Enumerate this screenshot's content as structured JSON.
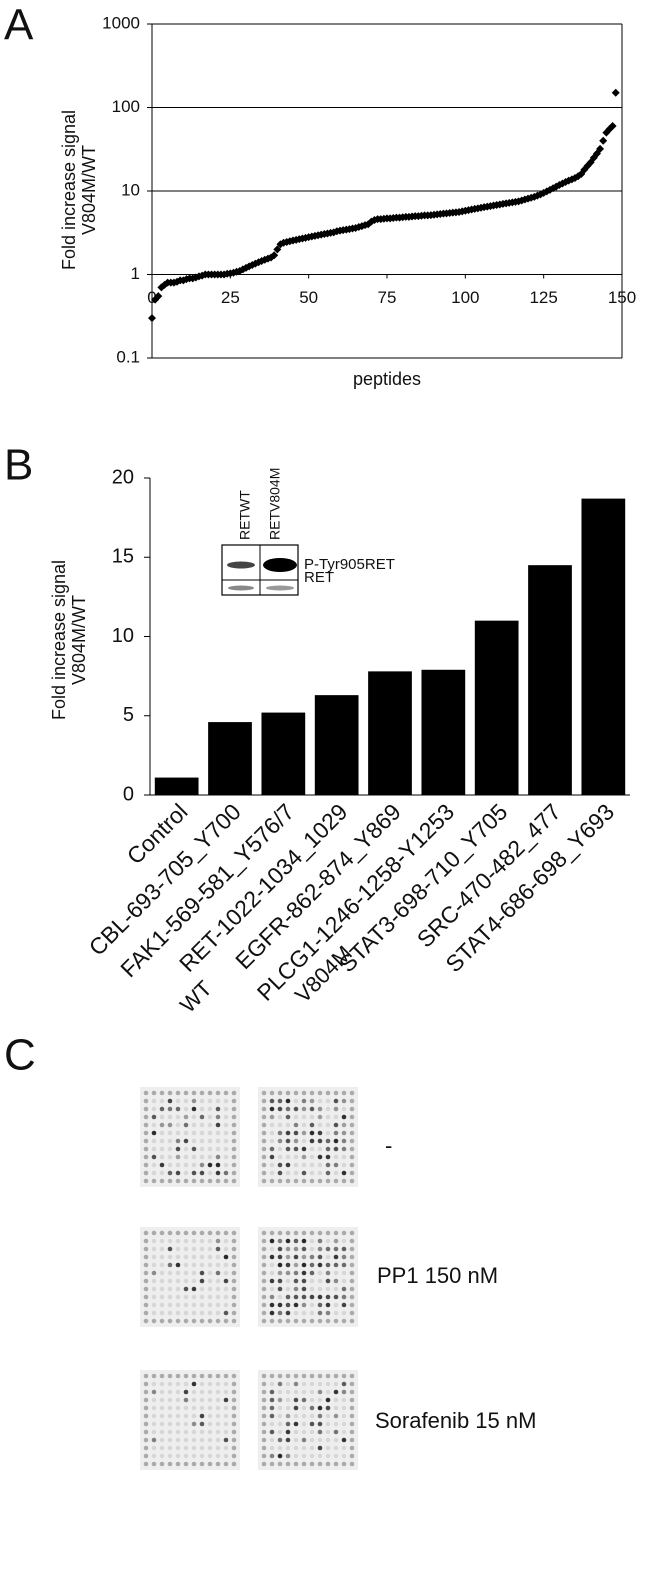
{
  "panels": [
    "A",
    "B",
    "C"
  ],
  "chart_data": [
    {
      "type": "scatter",
      "ylabel": [
        "Fold increase signal",
        "V804M/WT"
      ],
      "xlabel": "peptides",
      "log_y": true,
      "grid": true,
      "color": "#000000",
      "xlim": [
        0,
        150
      ],
      "xticks": [
        0,
        25,
        50,
        75,
        100,
        125,
        150
      ],
      "ylim": [
        0.1,
        1000
      ],
      "yticks": [
        0.1,
        1,
        10,
        100,
        1000
      ],
      "x": [
        0,
        1,
        2,
        3,
        4,
        5,
        6,
        7,
        8,
        9,
        10,
        11,
        12,
        13,
        14,
        15,
        16,
        17,
        18,
        19,
        20,
        21,
        22,
        23,
        24,
        25,
        26,
        27,
        28,
        29,
        30,
        31,
        32,
        33,
        34,
        35,
        36,
        37,
        38,
        39,
        40,
        41,
        42,
        43,
        44,
        45,
        46,
        47,
        48,
        49,
        50,
        51,
        52,
        53,
        54,
        55,
        56,
        57,
        58,
        59,
        60,
        61,
        62,
        63,
        64,
        65,
        66,
        67,
        68,
        69,
        70,
        71,
        72,
        73,
        74,
        75,
        76,
        77,
        78,
        79,
        80,
        81,
        82,
        83,
        84,
        85,
        86,
        87,
        88,
        89,
        90,
        91,
        92,
        93,
        94,
        95,
        96,
        97,
        98,
        99,
        100,
        101,
        102,
        103,
        104,
        105,
        106,
        107,
        108,
        109,
        110,
        111,
        112,
        113,
        114,
        115,
        116,
        117,
        118,
        119,
        120,
        121,
        122,
        123,
        124,
        125,
        126,
        127,
        128,
        129,
        130,
        131,
        132,
        133,
        134,
        135,
        136,
        137,
        138,
        139,
        140,
        141,
        142,
        143,
        144,
        145,
        146,
        147,
        148
      ],
      "values": [
        0.3,
        0.5,
        0.55,
        0.7,
        0.75,
        0.8,
        0.8,
        0.8,
        0.82,
        0.85,
        0.85,
        0.88,
        0.9,
        0.9,
        0.92,
        0.95,
        0.97,
        1.0,
        1.0,
        1.0,
        1.0,
        1.0,
        1.0,
        1.0,
        1.02,
        1.03,
        1.05,
        1.08,
        1.1,
        1.15,
        1.2,
        1.25,
        1.3,
        1.35,
        1.4,
        1.45,
        1.5,
        1.55,
        1.6,
        1.7,
        2.0,
        2.3,
        2.4,
        2.45,
        2.5,
        2.55,
        2.6,
        2.65,
        2.7,
        2.75,
        2.8,
        2.85,
        2.9,
        2.95,
        3.0,
        3.05,
        3.1,
        3.15,
        3.2,
        3.3,
        3.35,
        3.4,
        3.45,
        3.5,
        3.55,
        3.6,
        3.7,
        3.8,
        3.9,
        4.0,
        4.3,
        4.5,
        4.6,
        4.6,
        4.65,
        4.7,
        4.7,
        4.75,
        4.8,
        4.8,
        4.85,
        4.9,
        4.9,
        4.95,
        5.0,
        5.0,
        5.05,
        5.1,
        5.1,
        5.15,
        5.2,
        5.25,
        5.3,
        5.35,
        5.4,
        5.45,
        5.5,
        5.55,
        5.6,
        5.7,
        5.8,
        5.9,
        6.0,
        6.1,
        6.2,
        6.3,
        6.4,
        6.5,
        6.6,
        6.7,
        6.8,
        6.9,
        7.0,
        7.1,
        7.2,
        7.3,
        7.4,
        7.5,
        7.7,
        7.9,
        8.1,
        8.3,
        8.5,
        8.8,
        9.1,
        9.5,
        9.9,
        10.3,
        10.8,
        11.3,
        11.8,
        12.3,
        12.8,
        13.3,
        13.8,
        14.3,
        15,
        16,
        18,
        20,
        22,
        25,
        28,
        32,
        40,
        50,
        55,
        60,
        150
      ]
    },
    {
      "type": "bar",
      "ylabel": [
        "Fold increase signal",
        "V804M/WT"
      ],
      "color": "#000000",
      "categories": [
        "Control",
        "CBL-693-705_Y700",
        "FAK1-569-581_Y576/7",
        "RET-1022-1034_1029",
        "EGFR-862-874_Y869",
        "PLCG1-1246-1258-Y1253",
        "STAT3-698-710_Y705",
        "SRC-470-482_477",
        "STAT4-686-698_Y693"
      ],
      "values": [
        1.1,
        4.6,
        5.2,
        6.3,
        7.8,
        7.9,
        11.0,
        14.5,
        18.7
      ],
      "ylim": [
        0,
        20
      ],
      "yticks": [
        0,
        5,
        10,
        15,
        20
      ],
      "inset": {
        "lanes": [
          "RETWT",
          "RETV804M"
        ],
        "rows": [
          "P-Tyr905RET",
          "RET"
        ]
      }
    }
  ],
  "panel_c": {
    "columns": [
      "WT",
      "V804M"
    ],
    "rows": [
      "-",
      "PP1 150 nM",
      "Sorafenib 15 nM"
    ]
  }
}
